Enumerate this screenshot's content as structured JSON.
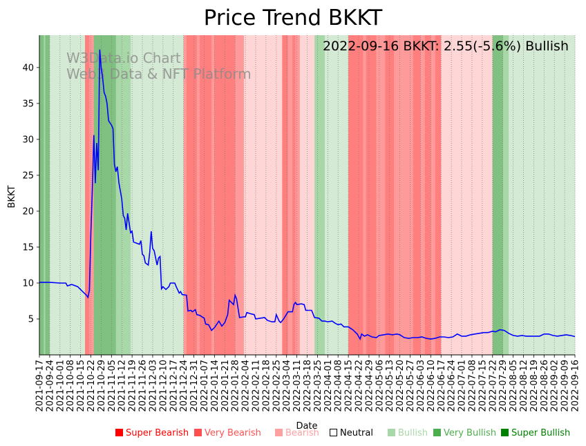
{
  "chart_data": {
    "type": "line",
    "title": "Price Trend BKKT",
    "xlabel": "Date",
    "ylabel": "BKKT",
    "ylim": [
      0,
      44.5
    ],
    "yticks": [
      5,
      10,
      15,
      20,
      25,
      30,
      35,
      40
    ],
    "annotation": "2022-09-16 BKKT: 2.55(-5.6%) Bullish",
    "watermark": [
      "W3Data.io Chart",
      "Web3 Data & NFT Platform"
    ],
    "date_range": [
      "2021-09-17",
      "2022-09-16"
    ],
    "xticks": [
      "2021-09-17",
      "2021-09-24",
      "2021-10-01",
      "2021-10-08",
      "2021-10-15",
      "2021-10-22",
      "2021-10-29",
      "2021-11-05",
      "2021-11-12",
      "2021-11-19",
      "2021-11-26",
      "2021-12-03",
      "2021-12-10",
      "2021-12-17",
      "2021-12-24",
      "2021-12-31",
      "2022-01-07",
      "2022-01-14",
      "2022-01-21",
      "2022-01-28",
      "2022-02-04",
      "2022-02-11",
      "2022-02-18",
      "2022-02-25",
      "2022-03-04",
      "2022-03-11",
      "2022-03-18",
      "2022-03-25",
      "2022-04-01",
      "2022-04-08",
      "2022-04-15",
      "2022-04-22",
      "2022-04-29",
      "2022-05-06",
      "2022-05-13",
      "2022-05-20",
      "2022-05-27",
      "2022-06-03",
      "2022-06-10",
      "2022-06-17",
      "2022-06-24",
      "2022-07-01",
      "2022-07-08",
      "2022-07-15",
      "2022-07-22",
      "2022-07-29",
      "2022-08-05",
      "2022-08-12",
      "2022-08-19",
      "2022-08-26",
      "2022-09-02",
      "2022-09-09",
      "2022-09-16"
    ],
    "series": [
      {
        "name": "BKKT",
        "color": "#0000ff",
        "points": [
          [
            "2021-09-17",
            10.1
          ],
          [
            "2021-09-24",
            10.1
          ],
          [
            "2021-10-01",
            10.0
          ],
          [
            "2021-10-05",
            10.0
          ],
          [
            "2021-10-06",
            9.6
          ],
          [
            "2021-10-09",
            9.8
          ],
          [
            "2021-10-13",
            9.5
          ],
          [
            "2021-10-16",
            8.9
          ],
          [
            "2021-10-19",
            8.3
          ],
          [
            "2021-10-20",
            8.0
          ],
          [
            "2021-10-21",
            9.0
          ],
          [
            "2021-10-22",
            17.0
          ],
          [
            "2021-10-23",
            23.0
          ],
          [
            "2021-10-24",
            30.6
          ],
          [
            "2021-10-25",
            23.9
          ],
          [
            "2021-10-26",
            29.5
          ],
          [
            "2021-10-27",
            25.7
          ],
          [
            "2021-10-28",
            42.5
          ],
          [
            "2021-10-29",
            40.0
          ],
          [
            "2021-10-30",
            38.5
          ],
          [
            "2021-10-31",
            36.5
          ],
          [
            "2021-11-01",
            36.0
          ],
          [
            "2021-11-02",
            35.0
          ],
          [
            "2021-11-03",
            32.6
          ],
          [
            "2021-11-05",
            32.0
          ],
          [
            "2021-11-06",
            31.5
          ],
          [
            "2021-11-07",
            26.5
          ],
          [
            "2021-11-08",
            25.5
          ],
          [
            "2021-11-09",
            26.2
          ],
          [
            "2021-11-10",
            24.0
          ],
          [
            "2021-11-12",
            21.7
          ],
          [
            "2021-11-13",
            19.4
          ],
          [
            "2021-11-14",
            19.0
          ],
          [
            "2021-11-15",
            17.4
          ],
          [
            "2021-11-16",
            19.7
          ],
          [
            "2021-11-18",
            17.0
          ],
          [
            "2021-11-19",
            17.2
          ],
          [
            "2021-11-20",
            15.7
          ],
          [
            "2021-11-24",
            15.4
          ],
          [
            "2021-11-25",
            15.9
          ],
          [
            "2021-11-26",
            14.0
          ],
          [
            "2021-11-27",
            13.8
          ],
          [
            "2021-11-28",
            12.8
          ],
          [
            "2021-11-30",
            12.5
          ],
          [
            "2021-12-01",
            14.3
          ],
          [
            "2021-12-02",
            17.2
          ],
          [
            "2021-12-03",
            14.8
          ],
          [
            "2021-12-04",
            14.5
          ],
          [
            "2021-12-06",
            12.5
          ],
          [
            "2021-12-07",
            13.5
          ],
          [
            "2021-12-08",
            13.7
          ],
          [
            "2021-12-09",
            9.2
          ],
          [
            "2021-12-10",
            9.5
          ],
          [
            "2021-12-12",
            9.1
          ],
          [
            "2021-12-14",
            9.5
          ],
          [
            "2021-12-15",
            10.0
          ],
          [
            "2021-12-18",
            10.0
          ],
          [
            "2021-12-19",
            9.5
          ],
          [
            "2021-12-21",
            8.6
          ],
          [
            "2021-12-22",
            8.8
          ],
          [
            "2021-12-23",
            8.4
          ],
          [
            "2021-12-26",
            8.3
          ],
          [
            "2021-12-27",
            6.1
          ],
          [
            "2021-12-29",
            6.2
          ],
          [
            "2021-12-30",
            6.0
          ],
          [
            "2022-01-01",
            6.3
          ],
          [
            "2022-01-02",
            5.6
          ],
          [
            "2022-01-04",
            5.5
          ],
          [
            "2022-01-07",
            5.1
          ],
          [
            "2022-01-08",
            4.3
          ],
          [
            "2022-01-10",
            4.2
          ],
          [
            "2022-01-12",
            3.4
          ],
          [
            "2022-01-14",
            3.8
          ],
          [
            "2022-01-17",
            4.7
          ],
          [
            "2022-01-19",
            4.0
          ],
          [
            "2022-01-21",
            4.5
          ],
          [
            "2022-01-23",
            5.6
          ],
          [
            "2022-01-24",
            7.6
          ],
          [
            "2022-01-27",
            7.0
          ],
          [
            "2022-01-28",
            8.3
          ],
          [
            "2022-01-29",
            7.8
          ],
          [
            "2022-01-31",
            5.2
          ],
          [
            "2022-02-03",
            5.3
          ],
          [
            "2022-02-04",
            5.3
          ],
          [
            "2022-02-05",
            5.9
          ],
          [
            "2022-02-08",
            5.7
          ],
          [
            "2022-02-10",
            5.6
          ],
          [
            "2022-02-11",
            5.0
          ],
          [
            "2022-02-14",
            5.1
          ],
          [
            "2022-02-17",
            5.2
          ],
          [
            "2022-02-19",
            4.8
          ],
          [
            "2022-02-22",
            4.6
          ],
          [
            "2022-02-24",
            4.6
          ],
          [
            "2022-02-25",
            5.6
          ],
          [
            "2022-02-27",
            4.7
          ],
          [
            "2022-02-28",
            4.5
          ],
          [
            "2022-03-02",
            5.0
          ],
          [
            "2022-03-05",
            6.0
          ],
          [
            "2022-03-08",
            6.0
          ],
          [
            "2022-03-09",
            7.0
          ],
          [
            "2022-03-10",
            7.3
          ],
          [
            "2022-03-11",
            7.0
          ],
          [
            "2022-03-14",
            7.1
          ],
          [
            "2022-03-16",
            7.0
          ],
          [
            "2022-03-17",
            6.2
          ],
          [
            "2022-03-21",
            6.2
          ],
          [
            "2022-03-23",
            5.2
          ],
          [
            "2022-03-26",
            5.1
          ],
          [
            "2022-03-28",
            4.7
          ],
          [
            "2022-03-30",
            4.7
          ],
          [
            "2022-04-01",
            4.6
          ],
          [
            "2022-04-04",
            4.7
          ],
          [
            "2022-04-06",
            4.4
          ],
          [
            "2022-04-08",
            4.2
          ],
          [
            "2022-04-10",
            4.3
          ],
          [
            "2022-04-12",
            3.9
          ],
          [
            "2022-04-15",
            3.9
          ],
          [
            "2022-04-18",
            3.5
          ],
          [
            "2022-04-21",
            2.9
          ],
          [
            "2022-04-23",
            2.2
          ],
          [
            "2022-04-24",
            2.9
          ],
          [
            "2022-04-26",
            2.6
          ],
          [
            "2022-04-28",
            2.8
          ],
          [
            "2022-05-01",
            2.5
          ],
          [
            "2022-05-04",
            2.4
          ],
          [
            "2022-05-06",
            2.7
          ],
          [
            "2022-05-09",
            2.8
          ],
          [
            "2022-05-12",
            2.9
          ],
          [
            "2022-05-15",
            2.8
          ],
          [
            "2022-05-18",
            2.9
          ],
          [
            "2022-05-20",
            2.8
          ],
          [
            "2022-05-23",
            2.4
          ],
          [
            "2022-05-26",
            2.3
          ],
          [
            "2022-05-29",
            2.4
          ],
          [
            "2022-06-01",
            2.4
          ],
          [
            "2022-06-04",
            2.5
          ],
          [
            "2022-06-07",
            2.3
          ],
          [
            "2022-06-10",
            2.2
          ],
          [
            "2022-06-13",
            2.3
          ],
          [
            "2022-06-16",
            2.5
          ],
          [
            "2022-06-19",
            2.5
          ],
          [
            "2022-06-22",
            2.4
          ],
          [
            "2022-06-25",
            2.5
          ],
          [
            "2022-06-28",
            2.9
          ],
          [
            "2022-07-01",
            2.6
          ],
          [
            "2022-07-04",
            2.6
          ],
          [
            "2022-07-07",
            2.8
          ],
          [
            "2022-07-10",
            2.9
          ],
          [
            "2022-07-13",
            3.0
          ],
          [
            "2022-07-16",
            3.1
          ],
          [
            "2022-07-19",
            3.1
          ],
          [
            "2022-07-22",
            3.3
          ],
          [
            "2022-07-24",
            3.2
          ],
          [
            "2022-07-27",
            3.5
          ],
          [
            "2022-07-30",
            3.4
          ],
          [
            "2022-08-02",
            3.0
          ],
          [
            "2022-08-05",
            2.7
          ],
          [
            "2022-08-08",
            2.6
          ],
          [
            "2022-08-11",
            2.7
          ],
          [
            "2022-08-14",
            2.6
          ],
          [
            "2022-08-17",
            2.6
          ],
          [
            "2022-08-20",
            2.6
          ],
          [
            "2022-08-23",
            2.6
          ],
          [
            "2022-08-26",
            2.9
          ],
          [
            "2022-08-29",
            2.9
          ],
          [
            "2022-09-01",
            2.7
          ],
          [
            "2022-09-04",
            2.6
          ],
          [
            "2022-09-07",
            2.7
          ],
          [
            "2022-09-10",
            2.8
          ],
          [
            "2022-09-13",
            2.7
          ],
          [
            "2022-09-16",
            2.55
          ]
        ]
      }
    ],
    "regimes": [
      [
        "2021-09-17",
        "2021-09-20",
        "very_bullish"
      ],
      [
        "2021-09-20",
        "2021-09-21",
        "bullish"
      ],
      [
        "2021-09-21",
        "2021-09-24",
        "very_bullish"
      ],
      [
        "2021-09-24",
        "2021-10-18",
        "mild_bullish"
      ],
      [
        "2021-10-18",
        "2021-10-21",
        "very_bearish"
      ],
      [
        "2021-10-21",
        "2021-10-24",
        "bearish"
      ],
      [
        "2021-10-24",
        "2021-10-27",
        "very_bullish"
      ],
      [
        "2021-10-27",
        "2021-11-08",
        "very_bullish"
      ],
      [
        "2021-11-08",
        "2021-11-18",
        "bullish"
      ],
      [
        "2021-11-18",
        "2021-12-24",
        "mild_bullish"
      ],
      [
        "2021-12-24",
        "2021-12-26",
        "bearish"
      ],
      [
        "2021-12-26",
        "2022-01-02",
        "very_bearish"
      ],
      [
        "2022-01-02",
        "2022-01-04",
        "bearish"
      ],
      [
        "2022-01-04",
        "2022-01-12",
        "very_bearish"
      ],
      [
        "2022-01-12",
        "2022-01-14",
        "bearish"
      ],
      [
        "2022-01-14",
        "2022-01-28",
        "very_bearish"
      ],
      [
        "2022-01-28",
        "2022-02-03",
        "bearish"
      ],
      [
        "2022-02-03",
        "2022-03-01",
        "mild_bearish"
      ],
      [
        "2022-03-01",
        "2022-03-05",
        "very_bearish"
      ],
      [
        "2022-03-05",
        "2022-03-08",
        "bearish"
      ],
      [
        "2022-03-08",
        "2022-03-10",
        "very_bearish"
      ],
      [
        "2022-03-10",
        "2022-03-13",
        "bearish"
      ],
      [
        "2022-03-13",
        "2022-03-23",
        "mild_bearish"
      ],
      [
        "2022-03-23",
        "2022-03-30",
        "bullish"
      ],
      [
        "2022-03-30",
        "2022-04-15",
        "mild_bullish"
      ],
      [
        "2022-04-15",
        "2022-04-25",
        "very_bearish"
      ],
      [
        "2022-04-25",
        "2022-04-27",
        "bearish"
      ],
      [
        "2022-04-27",
        "2022-05-04",
        "very_bearish"
      ],
      [
        "2022-05-04",
        "2022-05-10",
        "bearish"
      ],
      [
        "2022-05-10",
        "2022-05-16",
        "very_bearish"
      ],
      [
        "2022-05-16",
        "2022-05-29",
        "bearish"
      ],
      [
        "2022-05-29",
        "2022-06-03",
        "very_bearish"
      ],
      [
        "2022-06-03",
        "2022-06-06",
        "bearish"
      ],
      [
        "2022-06-06",
        "2022-06-10",
        "very_bearish"
      ],
      [
        "2022-06-10",
        "2022-06-13",
        "bearish"
      ],
      [
        "2022-06-13",
        "2022-06-17",
        "very_bearish"
      ],
      [
        "2022-06-17",
        "2022-07-22",
        "mild_bearish"
      ],
      [
        "2022-07-22",
        "2022-07-29",
        "very_bullish"
      ],
      [
        "2022-07-29",
        "2022-08-02",
        "bullish"
      ],
      [
        "2022-08-02",
        "2022-09-16",
        "mild_bullish"
      ]
    ],
    "legend": [
      {
        "label": "Super Bearish",
        "color": "#ff0000"
      },
      {
        "label": "Very Bearish",
        "color": "#ff5050"
      },
      {
        "label": "Bearish",
        "color": "#ffa0a0"
      },
      {
        "label": "Neutral",
        "color": "#000000"
      },
      {
        "label": "Bullish",
        "color": "#a8d8a8"
      },
      {
        "label": "Very Bullish",
        "color": "#4cae4c"
      },
      {
        "label": "Super Bullish",
        "color": "#008000"
      }
    ],
    "regime_colors": {
      "very_bearish": "#ff7f7f",
      "bearish": "#ff9a9a",
      "mild_bearish": "#ffd6d6",
      "mild_bullish": "#d5ead5",
      "bullish": "#a8d8a8",
      "very_bullish": "#80c080"
    }
  }
}
